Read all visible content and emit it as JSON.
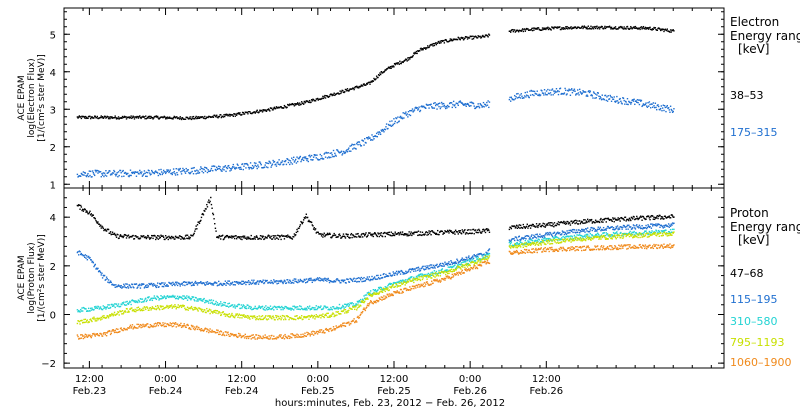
{
  "chart_data": [
    {
      "type": "scatter",
      "panel": "electron",
      "ylabel_lines": [
        "ACE EPAM",
        "log(Electron Flux)",
        "[1/(cm²s ster MeV)]"
      ],
      "ylim": [
        0.9,
        5.7
      ],
      "yticks": [
        "1",
        "2",
        "3",
        "4",
        "5"
      ],
      "legend_title_lines": [
        "Electron",
        "Energy ranges",
        "[keV]"
      ],
      "series": [
        {
          "name": "38–53",
          "color": "#000000",
          "x": [
            -2,
            4,
            10,
            16,
            22,
            28,
            34,
            40,
            44,
            46,
            48,
            50,
            52,
            55,
            58,
            62,
            66,
            70,
            76,
            82,
            88,
            92
          ],
          "y": [
            2.8,
            2.8,
            2.8,
            2.78,
            2.85,
            3.0,
            3.2,
            3.5,
            3.7,
            4.0,
            4.2,
            4.35,
            4.6,
            4.8,
            4.9,
            4.95,
            5.1,
            5.15,
            5.2,
            5.2,
            5.18,
            5.1
          ],
          "gap": [
            63,
            66
          ]
        },
        {
          "name": "175–315",
          "color": "#1f6fd0",
          "x": [
            -2,
            4,
            10,
            16,
            22,
            28,
            32,
            36,
            40,
            44,
            46,
            48,
            50,
            52,
            54,
            58,
            62,
            66,
            70,
            74,
            78,
            82,
            86,
            92
          ],
          "y": [
            1.3,
            1.3,
            1.32,
            1.38,
            1.45,
            1.55,
            1.65,
            1.75,
            1.9,
            2.2,
            2.45,
            2.7,
            2.9,
            3.05,
            3.1,
            3.15,
            3.12,
            3.3,
            3.45,
            3.5,
            3.45,
            3.3,
            3.2,
            3.0
          ],
          "gap": [
            63,
            66
          ]
        }
      ]
    },
    {
      "type": "scatter",
      "panel": "proton",
      "ylabel_lines": [
        "ACE EPAM",
        "log(Proton Flux)",
        "[1/(cm²s ster MeV)]"
      ],
      "ylim": [
        -2.2,
        5.2
      ],
      "yticks": [
        "−2",
        "0",
        "2",
        "4"
      ],
      "legend_title_lines": [
        "Proton",
        "Energy ranges",
        "[keV]"
      ],
      "series": [
        {
          "name": "47–68",
          "color": "#000000",
          "x": [
            -2,
            0,
            2,
            4,
            8,
            16,
            19,
            20,
            22,
            26,
            32,
            34,
            36,
            40,
            44,
            50,
            56,
            62,
            66,
            72,
            78,
            84,
            92
          ],
          "y": [
            4.5,
            4.2,
            3.6,
            3.25,
            3.2,
            3.2,
            4.8,
            3.2,
            3.2,
            3.2,
            3.2,
            4.1,
            3.3,
            3.25,
            3.3,
            3.35,
            3.4,
            3.45,
            3.6,
            3.7,
            3.85,
            3.95,
            4.05
          ],
          "gap": [
            63,
            66
          ]
        },
        {
          "name": "115–195",
          "color": "#1f6fd0",
          "x": [
            -2,
            0,
            2,
            4,
            8,
            12,
            16,
            20,
            24,
            28,
            32,
            36,
            40,
            44,
            48,
            52,
            56,
            62,
            66,
            72,
            78,
            84,
            92
          ],
          "y": [
            2.6,
            2.3,
            1.6,
            1.2,
            1.2,
            1.25,
            1.3,
            1.3,
            1.35,
            1.35,
            1.4,
            1.45,
            1.4,
            1.5,
            1.7,
            1.9,
            2.1,
            2.5,
            3.1,
            3.3,
            3.5,
            3.6,
            3.7
          ],
          "gap": [
            63,
            66
          ]
        },
        {
          "name": "310–580",
          "color": "#22d3d3",
          "x": [
            -2,
            2,
            6,
            10,
            14,
            18,
            22,
            26,
            30,
            34,
            38,
            42,
            44,
            48,
            52,
            56,
            62,
            66,
            72,
            78,
            84,
            92
          ],
          "y": [
            0.2,
            0.3,
            0.5,
            0.7,
            0.75,
            0.6,
            0.4,
            0.3,
            0.3,
            0.3,
            0.3,
            0.45,
            0.9,
            1.3,
            1.6,
            1.85,
            2.4,
            2.9,
            3.1,
            3.25,
            3.35,
            3.45
          ],
          "gap": [
            63,
            66
          ]
        },
        {
          "name": "795–1193",
          "color": "#c8e000",
          "x": [
            -2,
            2,
            6,
            10,
            14,
            18,
            22,
            26,
            30,
            34,
            38,
            42,
            44,
            48,
            52,
            56,
            62,
            66,
            72,
            78,
            84,
            92
          ],
          "y": [
            -0.3,
            -0.1,
            0.2,
            0.3,
            0.35,
            0.2,
            0.0,
            -0.1,
            -0.1,
            -0.1,
            0.0,
            0.3,
            0.8,
            1.2,
            1.5,
            1.75,
            2.3,
            2.8,
            3.0,
            3.15,
            3.25,
            3.35
          ],
          "gap": [
            63,
            66
          ]
        },
        {
          "name": "1060–1900",
          "color": "#f08a1c",
          "x": [
            -2,
            2,
            6,
            10,
            14,
            18,
            22,
            26,
            30,
            34,
            38,
            42,
            44,
            48,
            52,
            56,
            62,
            66,
            72,
            78,
            84,
            92
          ],
          "y": [
            -0.9,
            -0.8,
            -0.5,
            -0.4,
            -0.4,
            -0.6,
            -0.8,
            -0.9,
            -0.9,
            -0.8,
            -0.6,
            -0.2,
            0.5,
            0.9,
            1.2,
            1.5,
            2.1,
            2.55,
            2.7,
            2.75,
            2.8,
            2.85
          ],
          "gap": [
            63,
            66
          ]
        }
      ]
    }
  ],
  "x_axis": {
    "range_hours": [
      -4,
      100
    ],
    "title": "hours:minutes, Feb. 23, 2012 − Feb. 26, 2012",
    "ticks": [
      {
        "h": 0,
        "top": "12:00",
        "bottom": "Feb.23"
      },
      {
        "h": 12,
        "top": "0:00",
        "bottom": "Feb.24"
      },
      {
        "h": 24,
        "top": "12:00",
        "bottom": "Feb.24"
      },
      {
        "h": 36,
        "top": "0:00",
        "bottom": "Feb.25"
      },
      {
        "h": 48,
        "top": "12:00",
        "bottom": "Feb.25"
      },
      {
        "h": 60,
        "top": "0:00",
        "bottom": "Feb.26"
      },
      {
        "h": 72,
        "top": "12:00",
        "bottom": "Feb.26"
      }
    ]
  }
}
